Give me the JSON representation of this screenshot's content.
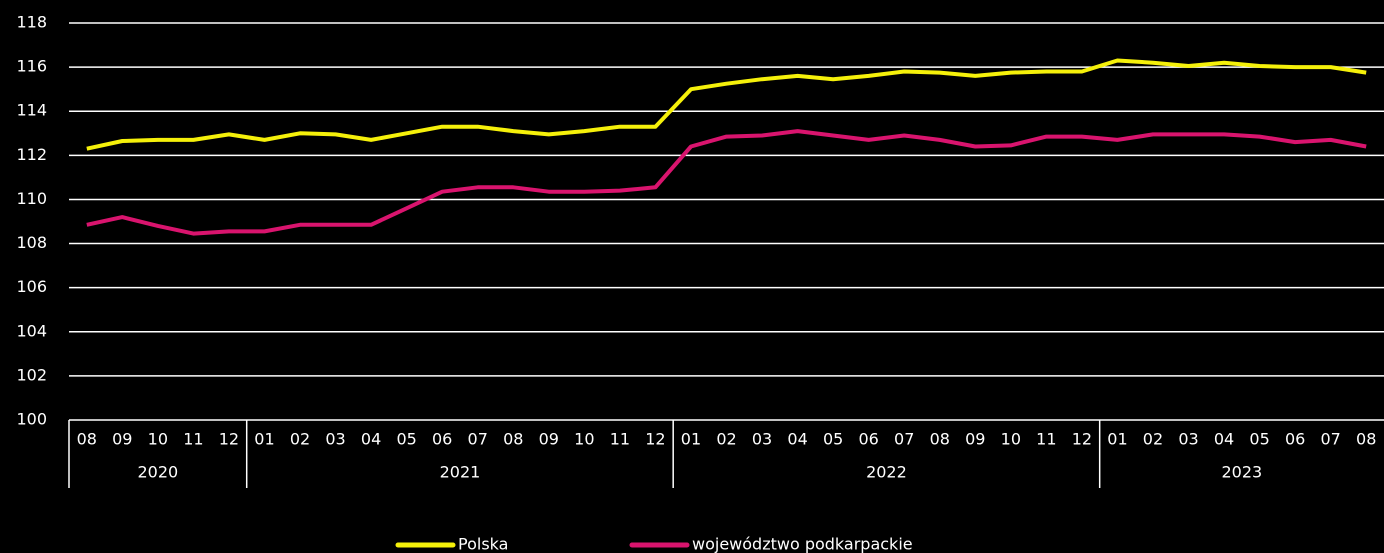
{
  "chart_data": {
    "type": "line",
    "categories": [
      "08",
      "09",
      "10",
      "11",
      "12",
      "01",
      "02",
      "03",
      "04",
      "05",
      "06",
      "07",
      "08",
      "09",
      "10",
      "11",
      "12",
      "01",
      "02",
      "03",
      "04",
      "05",
      "06",
      "07",
      "08",
      "09",
      "10",
      "11",
      "12",
      "01",
      "02",
      "03",
      "04",
      "05",
      "06",
      "07",
      "08"
    ],
    "groups": [
      {
        "label": "2020",
        "size": 5
      },
      {
        "label": "2021",
        "size": 12
      },
      {
        "label": "2022",
        "size": 12
      },
      {
        "label": "2023",
        "size": 8
      }
    ],
    "series": [
      {
        "name": "Polska",
        "color": "#f5f00a",
        "values": [
          112.3,
          112.65,
          112.7,
          112.7,
          112.95,
          112.7,
          113.0,
          112.95,
          112.7,
          113.0,
          113.3,
          113.3,
          113.1,
          112.95,
          113.1,
          113.3,
          113.3,
          115.0,
          115.25,
          115.45,
          115.6,
          115.45,
          115.6,
          115.8,
          115.75,
          115.6,
          115.75,
          115.8,
          115.8,
          116.3,
          116.2,
          116.05,
          116.2,
          116.05,
          116.0,
          116.0,
          115.75
        ]
      },
      {
        "name": "województwo podkarpackie",
        "color": "#d9146e",
        "values": [
          108.85,
          109.2,
          108.8,
          108.45,
          108.55,
          108.55,
          108.85,
          108.85,
          108.85,
          109.6,
          110.35,
          110.55,
          110.55,
          110.35,
          110.35,
          110.4,
          110.55,
          112.4,
          112.85,
          112.9,
          113.1,
          112.9,
          112.7,
          112.9,
          112.7,
          112.4,
          112.45,
          112.85,
          112.85,
          112.7,
          112.95,
          112.95,
          112.95,
          112.85,
          112.6,
          112.7,
          112.4
        ]
      }
    ],
    "ylim": [
      100,
      118
    ],
    "yticks": [
      100,
      102,
      104,
      106,
      108,
      110,
      112,
      114,
      116,
      118
    ],
    "grid": true,
    "legend": "bottom"
  }
}
